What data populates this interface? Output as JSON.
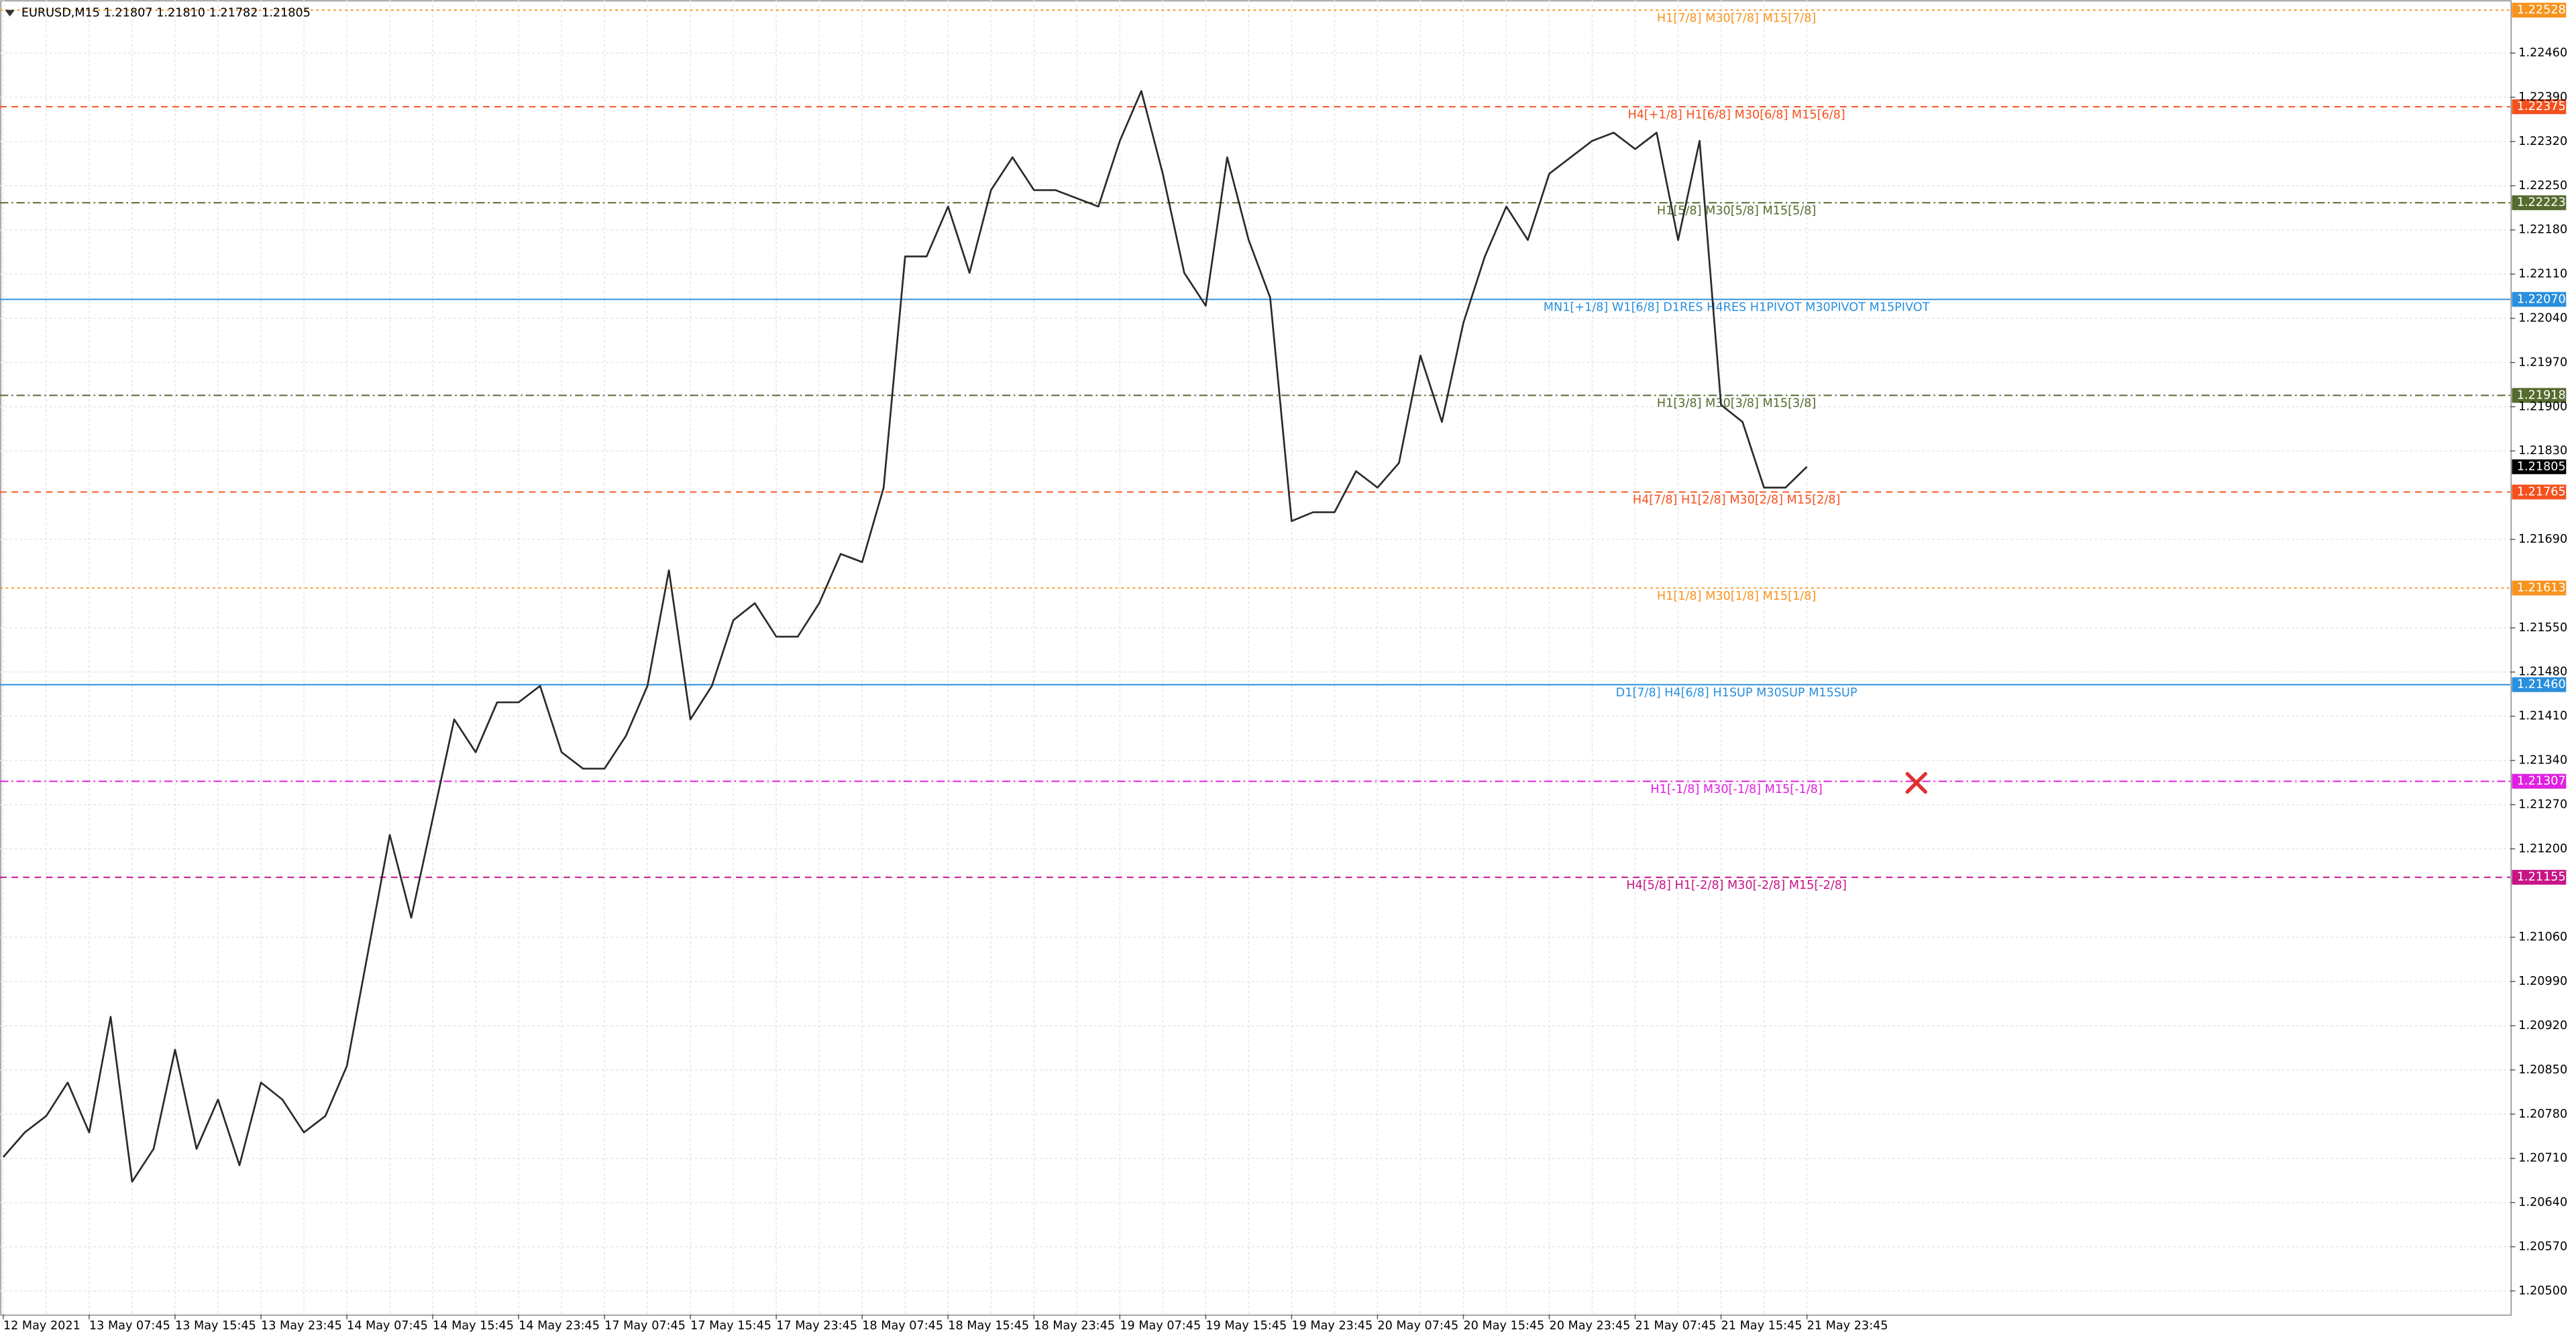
{
  "chart_data": {
    "type": "line",
    "title": "EURUSD,M15  1.21807 1.21810 1.21782 1.21805",
    "color": "#2b2b2b",
    "grid": true,
    "ylim": [
      1.20463,
      1.22544
    ],
    "yticks": [
      {
        "value": 1.2246,
        "label": "1.22460"
      },
      {
        "value": 1.2239,
        "label": "1.22390"
      },
      {
        "value": 1.2232,
        "label": "1.22320"
      },
      {
        "value": 1.2225,
        "label": "1.22250"
      },
      {
        "value": 1.2218,
        "label": "1.22180"
      },
      {
        "value": 1.2211,
        "label": "1.22110"
      },
      {
        "value": 1.2204,
        "label": "1.22040"
      },
      {
        "value": 1.2197,
        "label": "1.21970"
      },
      {
        "value": 1.219,
        "label": "1.21900"
      },
      {
        "value": 1.2183,
        "label": "1.21830"
      },
      {
        "value": 1.2169,
        "label": "1.21690"
      },
      {
        "value": 1.2155,
        "label": "1.21550"
      },
      {
        "value": 1.2148,
        "label": "1.21480"
      },
      {
        "value": 1.2141,
        "label": "1.21410"
      },
      {
        "value": 1.2134,
        "label": "1.21340"
      },
      {
        "value": 1.2127,
        "label": "1.21270"
      },
      {
        "value": 1.212,
        "label": "1.21200"
      },
      {
        "value": 1.2106,
        "label": "1.21060"
      },
      {
        "value": 1.2099,
        "label": "1.20990"
      },
      {
        "value": 1.2092,
        "label": "1.20920"
      },
      {
        "value": 1.2085,
        "label": "1.20850"
      },
      {
        "value": 1.2078,
        "label": "1.20780"
      },
      {
        "value": 1.2071,
        "label": "1.20710"
      },
      {
        "value": 1.2064,
        "label": "1.20640"
      },
      {
        "value": 1.2057,
        "label": "1.20570"
      },
      {
        "value": 1.205,
        "label": "1.20500"
      }
    ],
    "categories": [
      "12 May 2021",
      null,
      null,
      null,
      "13 May 07:45",
      null,
      null,
      null,
      "13 May 15:45",
      null,
      null,
      null,
      "13 May 23:45",
      null,
      null,
      null,
      "14 May 07:45",
      null,
      null,
      null,
      "14 May 15:45",
      null,
      null,
      null,
      "14 May 23:45",
      null,
      null,
      null,
      "17 May 07:45",
      null,
      null,
      null,
      "17 May 15:45",
      null,
      null,
      null,
      "17 May 23:45",
      null,
      null,
      null,
      "18 May 07:45",
      null,
      null,
      null,
      "18 May 15:45",
      null,
      null,
      null,
      "18 May 23:45",
      null,
      null,
      null,
      "19 May 07:45",
      null,
      null,
      null,
      "19 May 15:45",
      null,
      null,
      null,
      "19 May 23:45",
      null,
      null,
      null,
      "20 May 07:45",
      null,
      null,
      null,
      "20 May 15:45",
      null,
      null,
      null,
      "20 May 23:45",
      null,
      null,
      null,
      "21 May 07:45",
      null,
      null,
      null,
      "21 May 15:45",
      null,
      null,
      null,
      "21 May 23:45"
    ],
    "values": [
      1.20712,
      1.20751,
      1.20777,
      1.2083,
      1.20751,
      1.20934,
      1.20673,
      1.20725,
      1.20882,
      1.20725,
      1.20803,
      1.20699,
      1.2083,
      1.20803,
      1.20751,
      1.20777,
      1.20856,
      1.21039,
      1.21222,
      1.21091,
      1.21248,
      1.21405,
      1.21353,
      1.21432,
      1.21432,
      1.21458,
      1.21353,
      1.21327,
      1.21327,
      1.21379,
      1.21458,
      1.21641,
      1.21405,
      1.21458,
      1.21562,
      1.21589,
      1.21536,
      1.21536,
      1.21589,
      1.21667,
      1.21654,
      1.21772,
      1.22138,
      1.22138,
      1.22217,
      1.22112,
      1.22243,
      1.22295,
      1.22243,
      1.22243,
      1.2223,
      1.22217,
      1.22321,
      1.224,
      1.22269,
      1.22112,
      1.2206,
      1.22295,
      1.22164,
      1.22073,
      1.21719,
      1.21733,
      1.21733,
      1.21798,
      1.21772,
      1.21811,
      1.21981,
      1.21876,
      1.22033,
      1.22138,
      1.22217,
      1.22164,
      1.22269,
      1.22295,
      1.22321,
      1.22334,
      1.22308,
      1.22334,
      1.22164,
      1.22321,
      1.21903,
      1.21876,
      1.21772,
      1.21772,
      1.21805
    ],
    "current_color": "#000000",
    "levels": [
      {
        "price": 1.22528,
        "text": "H1[7/8] M30[7/8] M15[7/8]",
        "color": "#f7931e",
        "style": "dotted"
      },
      {
        "price": 1.22375,
        "text": "H4[+1/8] H1[6/8] M30[6/8] M15[6/8]",
        "color": "#f4511e",
        "style": "dashed"
      },
      {
        "price": 1.22223,
        "text": "H1[5/8] M30[5/8] M15[5/8]",
        "color": "#556b2f",
        "style": "dashdot"
      },
      {
        "price": {
          "value": 1.2207,
          "label": "1.22070"
        },
        "text": "MN1[+1/8] W1[6/8] D1RES H4RES H1PIVOT M30PIVOT M15PIVOT",
        "color": "#2a8fdd",
        "style": "solid"
      },
      {
        "price": 1.21918,
        "text": "H1[3/8] M30[3/8] M15[3/8]",
        "color": "#556b2f",
        "style": "dashdot"
      },
      {
        "price": 1.21765,
        "text": "H4[7/8] H1[2/8] M30[2/8] M15[2/8]",
        "color": "#f4511e",
        "style": "dashed"
      },
      {
        "price": 1.21613,
        "text": "H1[1/8] M30[1/8] M15[1/8]",
        "color": "#f7931e",
        "style": "dotted"
      },
      {
        "price": {
          "value": 1.2146,
          "label": "1.21460"
        },
        "text": "D1[7/8] H4[6/8] H1SUP M30SUP M15SUP",
        "color": "#2a8fdd",
        "style": "solid"
      },
      {
        "price": 1.21307,
        "text": "H1[-1/8] M30[-1/8] M15[-1/8]",
        "color": "#e020e0",
        "style": "dashdot"
      },
      {
        "price": 1.21155,
        "text": "H4[5/8] H1[-2/8] M30[-2/8] M15[-2/8]",
        "color": "#c71585",
        "style": "dashed"
      }
    ]
  }
}
